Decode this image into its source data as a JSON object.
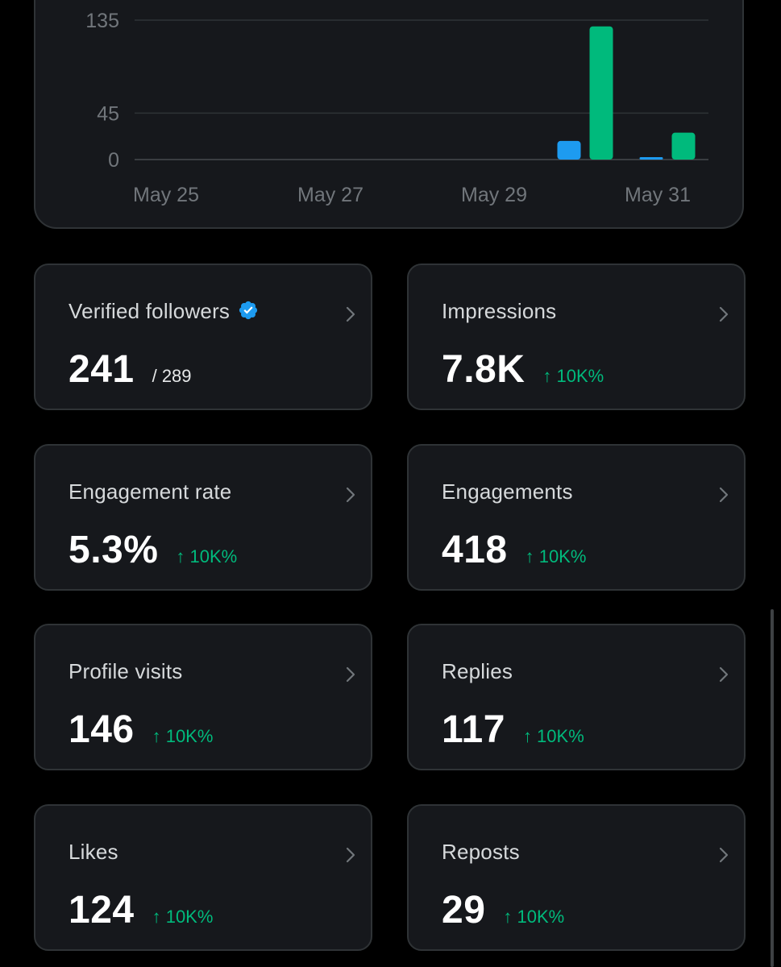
{
  "chart": {
    "y_ticks": [
      "135",
      "45",
      "0"
    ],
    "x_ticks": [
      "May 25",
      "May 27",
      "May 29",
      "May 31"
    ]
  },
  "chart_data": {
    "type": "bar",
    "x": [
      "May 25",
      "May 26",
      "May 27",
      "May 28",
      "May 29",
      "May 30",
      "May 31"
    ],
    "series": [
      {
        "color": "#1d9bf0",
        "values": [
          0,
          0,
          0,
          0,
          0,
          18,
          2
        ]
      },
      {
        "color": "#00ba7c",
        "values": [
          0,
          0,
          0,
          0,
          0,
          129,
          26
        ]
      }
    ],
    "y_tick_values": [
      0,
      45,
      135
    ],
    "ylim": [
      0,
      135
    ],
    "grid": true
  },
  "colors": {
    "blue": "#1d9bf0",
    "green": "#00ba7c"
  },
  "cards": [
    {
      "title": "Verified followers",
      "value": "241",
      "of": "/ 289",
      "icon": "verified-badge-icon"
    },
    {
      "title": "Impressions",
      "value": "7.8K",
      "change": "↑ 10K%"
    },
    {
      "title": "Engagement rate",
      "value": "5.3%",
      "change": "↑ 10K%"
    },
    {
      "title": "Engagements",
      "value": "418",
      "change": "↑ 10K%"
    },
    {
      "title": "Profile visits",
      "value": "146",
      "change": "↑ 10K%"
    },
    {
      "title": "Replies",
      "value": "117",
      "change": "↑ 10K%"
    },
    {
      "title": "Likes",
      "value": "124",
      "change": "↑ 10K%"
    },
    {
      "title": "Reposts",
      "value": "29",
      "change": "↑ 10K%"
    }
  ]
}
